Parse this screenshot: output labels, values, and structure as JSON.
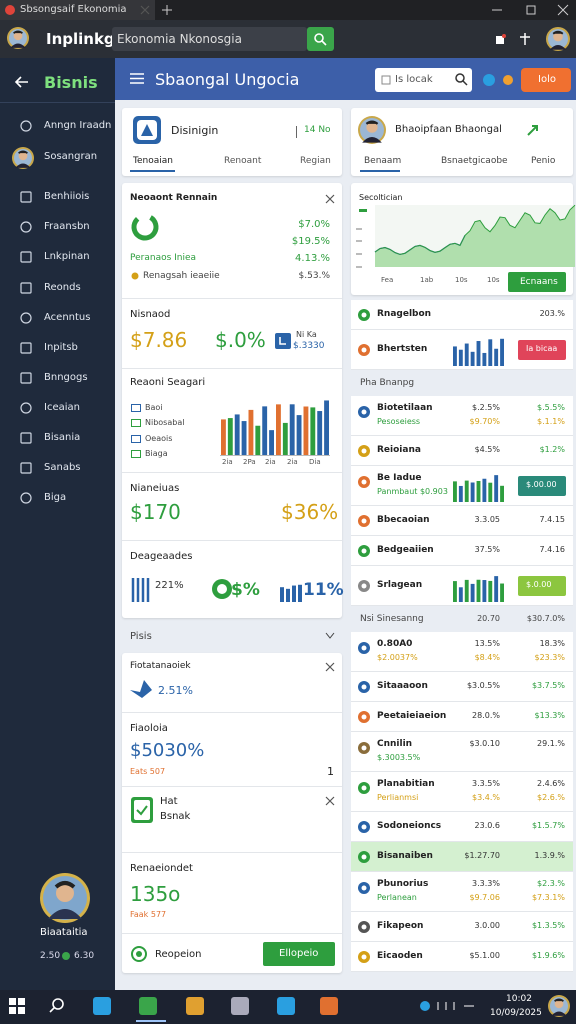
{
  "browser": {
    "tab_title": "Sbsongsaif Ekonomia",
    "logo": "Inplinkg",
    "address": "Ekonomia Nkonosgia"
  },
  "sidebar": {
    "title": "Bisnis",
    "items": [
      "Anngn Iraadn",
      "Sosangran",
      "Benhiiois",
      "Fraansbn",
      "Lnkpinan",
      "Reonds",
      "Acenntus",
      "Inpitsb",
      "Bnngogs",
      "Iceaian",
      "Bisania",
      "Sanabs",
      "Biga"
    ],
    "profile": {
      "name": "Biaataitia",
      "stat1": "2.50",
      "stat2": "6.30"
    }
  },
  "header": {
    "title": "Sbaongal Ungocia",
    "search_placeholder": "Is locak",
    "button": "Iolo"
  },
  "overview": {
    "profile": {
      "name": "Disinigin",
      "stat": "14 No",
      "tabs": [
        "Tenoaian",
        "Renoant",
        "Regian"
      ]
    },
    "revenue": {
      "title": "Neoaont Rennain",
      "values": [
        "$7.0%",
        "$19.5%",
        "4.13.%"
      ],
      "legend": "Peranaos Iniea",
      "note": "Renagsah ieaeiie",
      "note_value": "$.53.%"
    },
    "summary": {
      "title": "Nisnaod",
      "amount": "$7.86",
      "percent": "$.0%",
      "badge": "Ni Ka",
      "badge_value": "$.3330"
    },
    "report": {
      "title": "Reaoni Seagari",
      "legend": [
        "Baoi",
        "Nibosabal",
        "Oeaois",
        "Biaga"
      ],
      "axis": [
        "2ia",
        "2Pa",
        "2ia",
        "2ia",
        "Dia"
      ]
    },
    "members": {
      "title": "Nianeiuas",
      "amount": "$170",
      "percent": "$36%"
    },
    "downloads": {
      "title": "Deageaades",
      "items": [
        "221%",
        "$%",
        "11%"
      ]
    }
  },
  "posts": {
    "title": "Pisis",
    "cards": [
      {
        "title": "Fiotatanaoiek",
        "value": "2.51%"
      },
      {
        "title": "Fiaoloia",
        "value": "$5030%",
        "note": "Eats 507",
        "aside": "1"
      },
      {
        "title": "Hat",
        "subtitle": "Bsnak"
      },
      {
        "title": "Renaeiondet",
        "value": "135o",
        "note": "Faak 577"
      }
    ],
    "footer": {
      "option": "Reopeion",
      "button": "Ellopeio"
    }
  },
  "right": {
    "profile": {
      "name": "Bhaoipfaan Bhaongal",
      "tabs": [
        "Benaam",
        "Bsnaetgicaobe",
        "Penio"
      ]
    },
    "chart": {
      "label": "Secoltician",
      "axis": [
        "Fea",
        "1ab",
        "10s",
        "10s"
      ],
      "button": "Ecnaans"
    },
    "rows": [
      {
        "label": "Rnagelbon",
        "icon": "#2e9e3e",
        "v2": "203.%"
      },
      {
        "label": "Bhertsten",
        "icon": "#e07030",
        "bars": true,
        "button": "Ia bicaa",
        "button_color": "#e0445a"
      },
      {
        "heading": "Pha Bnanpg"
      },
      {
        "label": "Biotetilaan",
        "sub": "Pesoseiess",
        "icon": "#2a63a8",
        "v1": "$.2.5%",
        "v1b": "$9.70%",
        "v2": "$.5.5%",
        "v2b": "$.1.1%"
      },
      {
        "label": "Reioiana",
        "icon": "#d4a017",
        "v1": "$4.5%",
        "v2": "$1.2%"
      },
      {
        "label": "Be Iadue",
        "sub": "Panmbaut $0.903",
        "icon": "#e07030",
        "bars": true,
        "button": "$.00.00",
        "button_color": "#2a8a7a"
      },
      {
        "label": "Bbecaoian",
        "icon": "#e07030",
        "v1": "3.3.05",
        "v2": "7.4.15"
      },
      {
        "label": "Bedgeaiien",
        "icon": "#2e9e3e",
        "v1": "37.5%",
        "v2": "7.4.16"
      },
      {
        "label": "Srlagean",
        "icon": "#888888",
        "bars": true,
        "button": "$.0.00",
        "button_color": "#8cc63f"
      },
      {
        "heading": "Nsi Sinesanng",
        "v1": "20.70",
        "v2": "$30.7.0%"
      },
      {
        "label": "0.80A0",
        "sub": "$2.0037%",
        "icon": "#2a63a8",
        "v1": "13.5%",
        "v1b": "$8.4%",
        "v2": "18.3%",
        "v2b": "$23.3%"
      },
      {
        "label": "Sitaaaoon",
        "icon": "#2a63a8",
        "v1": "$3.0.5%",
        "v2": "$3.7.5%"
      },
      {
        "label": "Peetaieiaeion",
        "icon": "#e07030",
        "v1": "28.0.%",
        "v2": "$13.3%"
      },
      {
        "label": "Cnnilin",
        "sub": "$.3003.5%",
        "icon": "#8a6d3b",
        "v1": "$3.0.10",
        "v2": "29.1.%"
      },
      {
        "label": "Planabitian",
        "sub": "Perlianmsi",
        "icon": "#2e9e3e",
        "v1": "3.3.5%",
        "v1b": "$3.4.%",
        "v2": "2.4.6%",
        "v2b": "$2.6.%"
      },
      {
        "label": "Sodoneioncs",
        "icon": "#2a63a8",
        "v1": "23.0.6",
        "v2": "$1.5.7%"
      },
      {
        "label": "Bisanaiben",
        "icon": "#2e9e3e",
        "v1": "$1.27.70",
        "v2": "1.3.9.%",
        "highlight": true
      },
      {
        "label": "Pbunorius",
        "sub": "Perlanean",
        "icon": "#2a63a8",
        "v1": "3.3.3%",
        "v1b": "$9.7.06",
        "v2": "$2.3.%",
        "v2b": "$7.3.1%"
      },
      {
        "label": "Fikapeon",
        "icon": "#555555",
        "v1": "3.0.00",
        "v2": "$1.3.5%"
      },
      {
        "label": "Eicaoden",
        "icon": "#d4a017",
        "v1": "$5.1.00",
        "v2": "$1.9.6%"
      }
    ]
  },
  "taskbar": {
    "time": "10:02",
    "date": "10/09/2025"
  }
}
